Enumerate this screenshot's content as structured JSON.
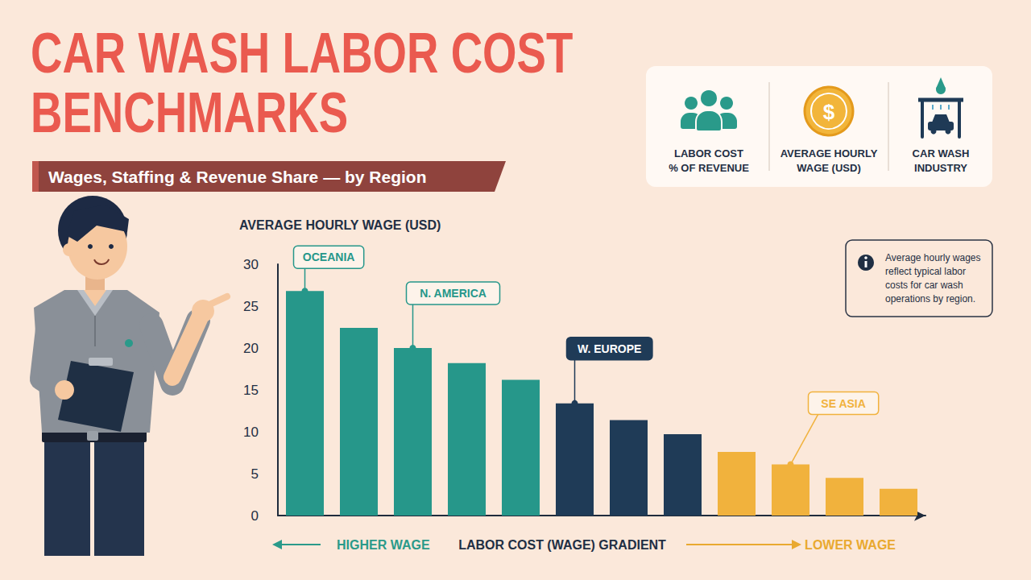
{
  "chart_data": {
    "type": "bar",
    "title": "CAR WASH LABOR COST BENCHMARKS",
    "subtitle": "Wages, Staffing & Revenue Share — by Region",
    "key_panel": [
      {
        "label": "LABOR COST % OF REVENUE"
      },
      {
        "label": "AVERAGE HOURLY WAGE (USD)",
        "symbol": "$"
      },
      {
        "label": "CAR WASH INDUSTRY"
      }
    ],
    "y_label": "AVERAGE HOURLY WAGE (USD)",
    "note": "Average hourly wages reflect typical labor costs for car wash operations by region.",
    "categories": [
      null,
      null,
      null,
      null,
      null,
      null,
      null,
      null,
      null,
      null,
      null,
      null
    ],
    "values": [
      26.8,
      22.4,
      20.0,
      18.2,
      16.2,
      13.4,
      11.4,
      9.7,
      7.6,
      6.1,
      4.5,
      3.2
    ],
    "colors": [
      "#26978a",
      "#26978a",
      "#26978a",
      "#26978a",
      "#26978a",
      "#1f3b57",
      "#1f3b57",
      "#1f3b57",
      "#f1b23d",
      "#f1b23d",
      "#f1b23d",
      "#f1b23d"
    ],
    "annotations": [
      {
        "text": "OCEANIA",
        "index": 0
      },
      {
        "text": "N. AMERICA",
        "index": 2
      },
      {
        "text": "W. EUROPE",
        "index": 5
      },
      {
        "text": "SE ASIA",
        "index": 9
      }
    ],
    "x_label": "LABOR COST (WAGE) GRADIENT",
    "gradient_labels": {
      "left": "HIGHER WAGE",
      "right": "LOWER WAGE"
    },
    "ylim": [
      0,
      30
    ],
    "yticks": [
      0,
      5,
      10,
      15,
      20,
      25,
      30
    ],
    "grid": false,
    "tick_labels": "y",
    "data_labels": false
  }
}
